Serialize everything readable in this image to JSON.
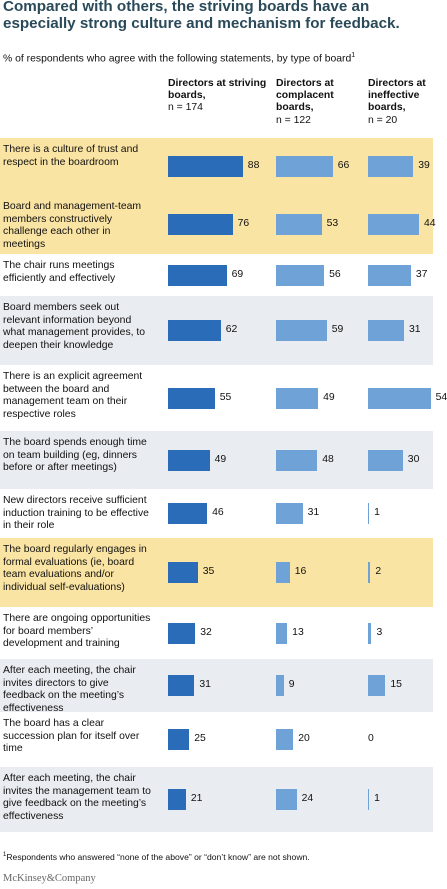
{
  "title": "Compared with others, the striving boards have an especially strong culture and mechanism for feedback.",
  "subtitle": "% of respondents who agree with the following statements, by type of board",
  "subtitle_note_marker": "1",
  "footnote_marker": "1",
  "footnote": "Respondents who answered “none of the above” or “don’t know” are not shown.",
  "brand": "McKinsey&Company",
  "colors": {
    "striving": "#2a6cb8",
    "complacent": "#6fa3d8",
    "ineffective": "#6fa3d8",
    "highlight": "#fae4a3",
    "shade": "#e9ecf0",
    "plain": "#ffffff",
    "title": "#2a4a5a"
  },
  "chart_data": {
    "type": "bar",
    "orientation": "horizontal",
    "columns": [
      {
        "name": "Directors at striving boards,",
        "n": "n = 174"
      },
      {
        "name": "Directors at complacent boards,",
        "n": "n = 122"
      },
      {
        "name": "Directors at ineffective boards,",
        "n": "n = 20"
      }
    ],
    "categories": [
      "There is a culture of trust and respect in the boardroom",
      "Board and management-team members constructively challenge each other in meetings",
      "The chair runs meetings efficiently and effectively",
      "Board members seek out relevant information beyond what management provides, to deepen their knowledge",
      "There is an explicit agreement between the board and management team on their respective roles",
      "The board spends enough time on team building (eg, dinners before or after meetings)",
      "New directors receive sufficient induction training to be effective in their role",
      "The board regularly engages in formal evaluations (ie, board team evaluations and/or individual self-evaluations)",
      "There are ongoing opportunities for board members’ development and training",
      "After each meeting, the chair invites directors to give feedback on the meeting’s effectiveness",
      "The board has a clear succession plan for itself over time",
      "After each meeting, the chair invites the management team to give feedback on the meeting’s effectiveness"
    ],
    "series": [
      {
        "name": "Directors at striving boards",
        "values": [
          88,
          76,
          69,
          62,
          55,
          49,
          46,
          35,
          32,
          31,
          25,
          21
        ]
      },
      {
        "name": "Directors at complacent boards",
        "values": [
          66,
          53,
          56,
          59,
          49,
          48,
          31,
          16,
          13,
          9,
          20,
          24
        ]
      },
      {
        "name": "Directors at ineffective boards",
        "values": [
          39,
          44,
          37,
          31,
          54,
          30,
          1,
          2,
          3,
          15,
          0,
          1
        ]
      }
    ],
    "row_background": [
      "highlight",
      "highlight",
      "plain",
      "shade",
      "plain",
      "shade",
      "plain",
      "highlight",
      "plain",
      "shade",
      "plain",
      "shade"
    ]
  }
}
